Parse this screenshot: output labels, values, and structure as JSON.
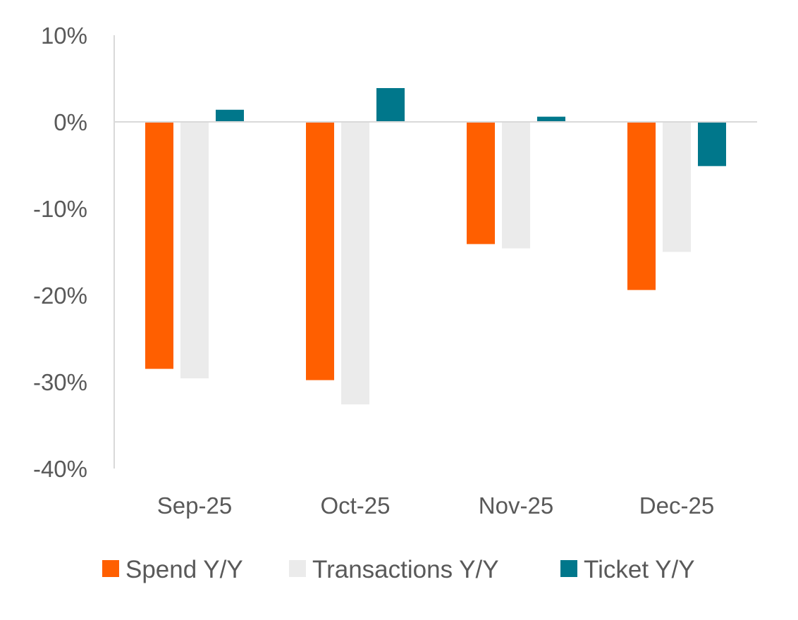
{
  "chart_data": {
    "type": "bar",
    "title": "",
    "xlabel": "",
    "ylabel": "",
    "ylim": [
      -40,
      10
    ],
    "yticks": [
      10,
      0,
      -10,
      -20,
      -30,
      -40
    ],
    "ytick_labels": [
      "10%",
      "0%",
      "-10%",
      "-20%",
      "-30%",
      "-40%"
    ],
    "categories": [
      "Sep-25",
      "Oct-25",
      "Nov-25",
      "Dec-25"
    ],
    "series": [
      {
        "name": "Spend Y/Y",
        "color": "#FF5F00",
        "values": [
          -28.5,
          -29.8,
          -14.1,
          -19.4
        ]
      },
      {
        "name": "Transactions Y/Y",
        "color": "#EBEBEB",
        "values": [
          -29.6,
          -32.6,
          -14.6,
          -15.0
        ]
      },
      {
        "name": "Ticket Y/Y",
        "color": "#00778B",
        "values": [
          1.4,
          3.9,
          0.6,
          -5.1
        ]
      }
    ],
    "grid": false,
    "legend_position": "bottom"
  }
}
